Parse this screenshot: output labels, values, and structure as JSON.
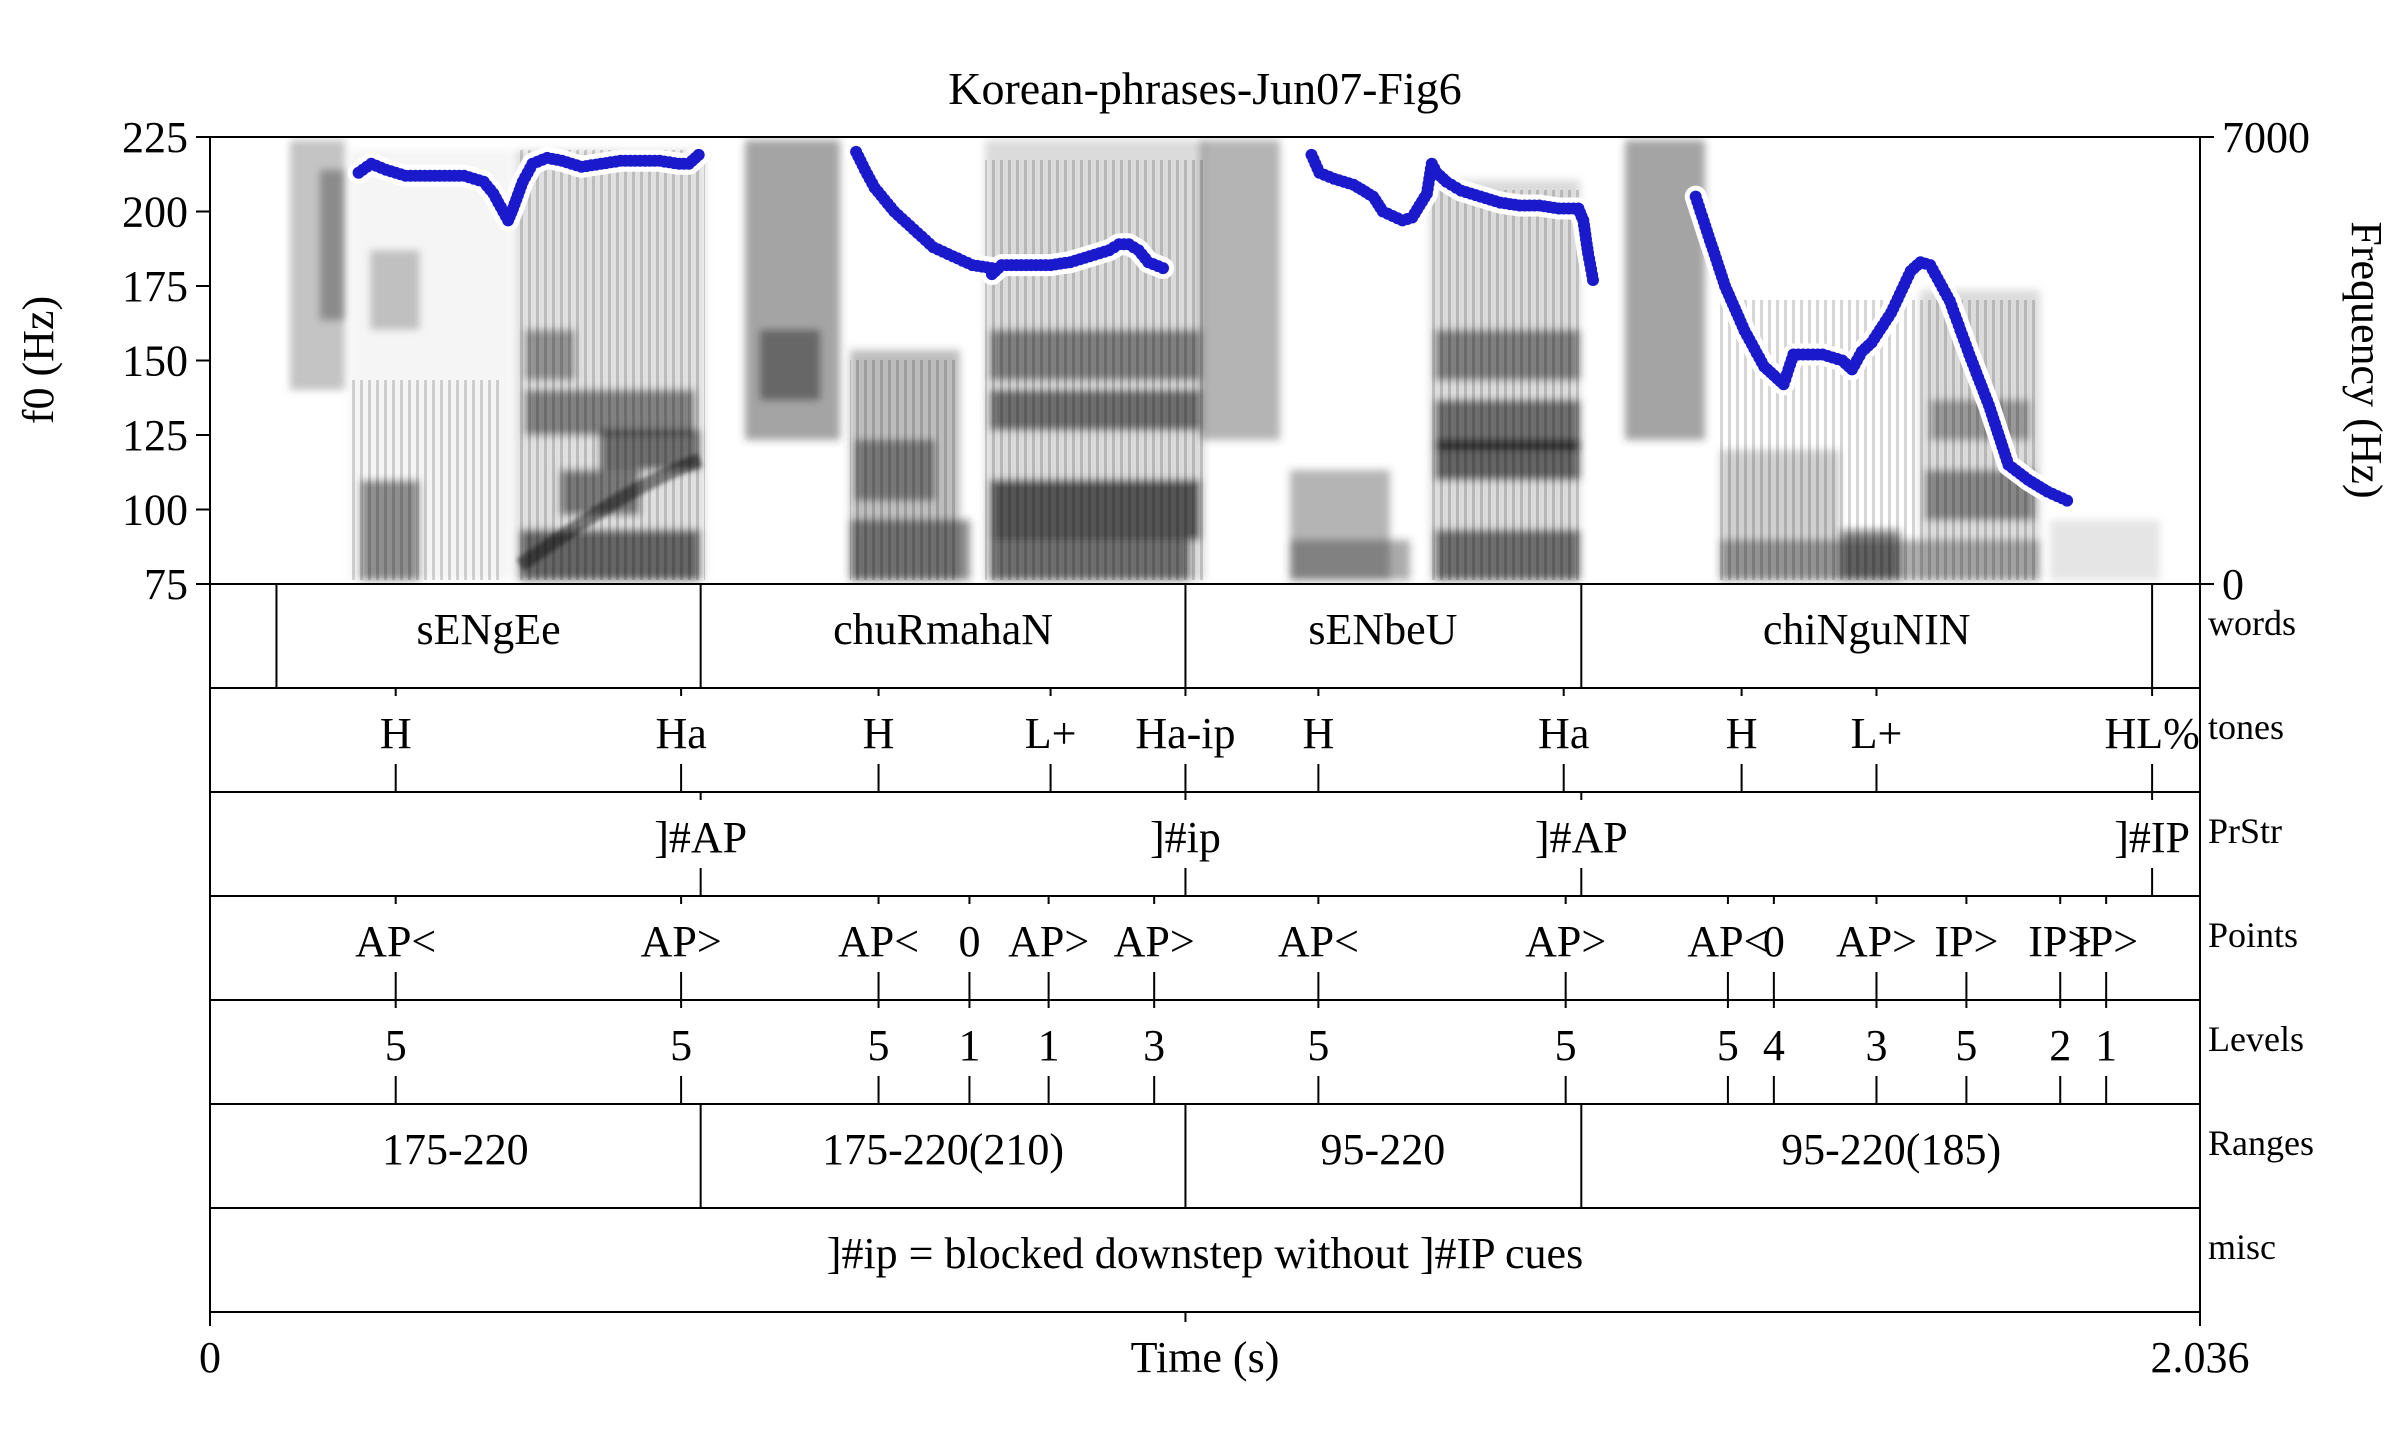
{
  "chart_data": {
    "type": "spectrogram",
    "title": "Korean-phrases-Jun07-Fig6",
    "xlabel": "Time (s)",
    "x_range": [
      0,
      2.036
    ],
    "x_tick_labels": [
      "0",
      "2.036"
    ],
    "ylabel_left": "f0 (Hz)",
    "ylim_left": [
      75,
      225
    ],
    "y_ticks_left": [
      75,
      100,
      125,
      150,
      175,
      200,
      225
    ],
    "ylabel_right": "Frequency (Hz)",
    "ylim_right": [
      0,
      7000
    ],
    "y_ticks_right": [
      0,
      7000
    ],
    "pitch_color": "#1a1acc",
    "pitch_segments": [
      {
        "t": [
          0.152,
          0.165,
          0.18,
          0.2,
          0.22,
          0.24,
          0.26,
          0.28,
          0.29,
          0.3,
          0.305,
          0.31,
          0.32,
          0.33,
          0.345,
          0.36,
          0.38,
          0.4,
          0.42,
          0.44,
          0.46,
          0.48,
          0.49,
          0.5
        ],
        "f0": [
          213,
          216,
          214,
          212,
          212,
          212,
          212,
          210,
          206,
          200,
          197,
          201,
          210,
          216,
          218,
          217,
          215,
          216,
          217,
          217,
          217,
          216,
          216,
          219
        ]
      },
      {
        "t": [
          0.661,
          0.67,
          0.68,
          0.7,
          0.72,
          0.74,
          0.76,
          0.78,
          0.8,
          0.8,
          0.81,
          0.82,
          0.84,
          0.86,
          0.88,
          0.9,
          0.92,
          0.93,
          0.94,
          0.95,
          0.96,
          0.975
        ],
        "f0": [
          220,
          214,
          208,
          200,
          194,
          188,
          185,
          182,
          181,
          179,
          182,
          182,
          182,
          182,
          183,
          185,
          187,
          189,
          189,
          187,
          183,
          181
        ]
      },
      {
        "t": [
          1.127,
          1.135,
          1.15,
          1.17,
          1.19,
          1.2,
          1.22,
          1.23,
          1.245,
          1.25,
          1.255,
          1.265,
          1.28,
          1.3,
          1.32,
          1.34,
          1.36,
          1.38,
          1.4,
          1.405,
          1.41,
          1.415
        ],
        "f0": [
          219,
          213,
          211,
          209,
          205,
          200,
          197,
          198,
          206,
          216,
          213,
          210,
          207,
          205,
          203,
          202,
          202,
          201,
          201,
          197,
          186,
          177
        ]
      },
      {
        "t": [
          1.52,
          1.53,
          1.55,
          1.57,
          1.59,
          1.6,
          1.61,
          1.62,
          1.63,
          1.65,
          1.66,
          1.67,
          1.68,
          1.69,
          1.7,
          1.72,
          1.74,
          1.75,
          1.76,
          1.78,
          1.8,
          1.82,
          1.84,
          1.86,
          1.88,
          1.9
        ],
        "f0": [
          205,
          195,
          175,
          160,
          148,
          145,
          142,
          152,
          152,
          152,
          151,
          150,
          147,
          153,
          156,
          166,
          180,
          183,
          182,
          170,
          152,
          135,
          115,
          110,
          106,
          103
        ]
      }
    ]
  },
  "tiers": [
    {
      "name": "words",
      "type": "interval",
      "boundaries": [
        0.068,
        0.502,
        0.998,
        1.403,
        1.987
      ],
      "labels": [
        {
          "text": "sENgEe",
          "t": 0.285
        },
        {
          "text": "chuRmahaN",
          "t": 0.75
        },
        {
          "text": "sENbeU",
          "t": 1.2
        },
        {
          "text": "chiNguNIN",
          "t": 1.695
        }
      ]
    },
    {
      "name": "tones",
      "type": "point",
      "points": [
        {
          "t": 0.19,
          "text": "H"
        },
        {
          "t": 0.482,
          "text": "Ha"
        },
        {
          "t": 0.684,
          "text": "H"
        },
        {
          "t": 0.86,
          "text": "L+"
        },
        {
          "t": 0.998,
          "text": "Ha-ip"
        },
        {
          "t": 1.134,
          "text": "H"
        },
        {
          "t": 1.385,
          "text": "Ha"
        },
        {
          "t": 1.567,
          "text": "H"
        },
        {
          "t": 1.705,
          "text": "L+"
        },
        {
          "t": 1.987,
          "text": "HL%"
        }
      ]
    },
    {
      "name": "PrStr",
      "type": "point",
      "points": [
        {
          "t": 0.502,
          "text": "]#AP"
        },
        {
          "t": 0.998,
          "text": "]#ip"
        },
        {
          "t": 1.403,
          "text": "]#AP"
        },
        {
          "t": 1.987,
          "text": "]#IP"
        }
      ]
    },
    {
      "name": "Points",
      "type": "point",
      "points": [
        {
          "t": 0.19,
          "text": "AP<"
        },
        {
          "t": 0.482,
          "text": "AP>"
        },
        {
          "t": 0.684,
          "text": "AP<"
        },
        {
          "t": 0.777,
          "text": "0"
        },
        {
          "t": 0.858,
          "text": "AP>"
        },
        {
          "t": 0.966,
          "text": "AP>"
        },
        {
          "t": 1.134,
          "text": "AP<"
        },
        {
          "t": 1.387,
          "text": "AP>"
        },
        {
          "t": 1.553,
          "text": "AP<"
        },
        {
          "t": 1.6,
          "text": "0"
        },
        {
          "t": 1.705,
          "text": "AP>"
        },
        {
          "t": 1.797,
          "text": "IP>"
        },
        {
          "t": 1.893,
          "text": "IP>"
        },
        {
          "t": 1.94,
          "text": "IP>"
        }
      ]
    },
    {
      "name": "Levels",
      "type": "point",
      "points": [
        {
          "t": 0.19,
          "text": "5"
        },
        {
          "t": 0.482,
          "text": "5"
        },
        {
          "t": 0.684,
          "text": "5"
        },
        {
          "t": 0.777,
          "text": "1"
        },
        {
          "t": 0.858,
          "text": "1"
        },
        {
          "t": 0.966,
          "text": "3"
        },
        {
          "t": 1.134,
          "text": "5"
        },
        {
          "t": 1.387,
          "text": "5"
        },
        {
          "t": 1.553,
          "text": "5"
        },
        {
          "t": 1.6,
          "text": "4"
        },
        {
          "t": 1.705,
          "text": "3"
        },
        {
          "t": 1.797,
          "text": "5"
        },
        {
          "t": 1.893,
          "text": "2"
        },
        {
          "t": 1.94,
          "text": "1"
        }
      ]
    },
    {
      "name": "Ranges",
      "type": "interval",
      "boundaries": [
        0.502,
        0.998,
        1.403
      ],
      "labels": [
        {
          "text": "175-220",
          "t": 0.251
        },
        {
          "text": "175-220(210)",
          "t": 0.75
        },
        {
          "text": "95-220",
          "t": 1.2
        },
        {
          "text": "95-220(185)",
          "t": 1.72
        }
      ]
    },
    {
      "name": "misc",
      "type": "interval",
      "boundaries": [],
      "labels": [
        {
          "text": "]#ip = blocked downstep without ]#IP cues",
          "t": 1.018
        }
      ]
    }
  ]
}
